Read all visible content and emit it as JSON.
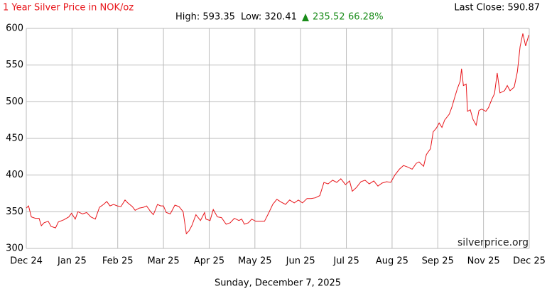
{
  "chart_data": {
    "type": "line",
    "title": "1 Year Silver Price in NOK/oz",
    "high": "High: 593.35",
    "low": "Low: 320.41",
    "change": "235.52",
    "change_pct": "66.28%",
    "last_close": "Last Close: 590.87",
    "watermark": "silverprice.org",
    "date": "Sunday, December 7, 2025",
    "xlim": [
      0,
      11
    ],
    "xticks": [
      {
        "value": 0,
        "label": "Dec 24"
      },
      {
        "value": 1,
        "label": "Jan 25"
      },
      {
        "value": 2,
        "label": "Feb 25"
      },
      {
        "value": 3,
        "label": "Mar 25"
      },
      {
        "value": 4,
        "label": "Apr 25"
      },
      {
        "value": 5,
        "label": "May 25"
      },
      {
        "value": 6,
        "label": "Jun 25"
      },
      {
        "value": 7,
        "label": "Jul 25"
      },
      {
        "value": 8,
        "label": "Aug 25"
      },
      {
        "value": 9,
        "label": "Sep 25"
      },
      {
        "value": 10,
        "label": "Nov 25"
      },
      {
        "value": 11,
        "label": "Dec 25"
      }
    ],
    "ylim": [
      300,
      600
    ],
    "yticks": [
      300,
      350,
      400,
      450,
      500,
      550,
      600
    ],
    "grid": true,
    "x": [
      0,
      0.05,
      0.11,
      0.2,
      0.28,
      0.33,
      0.39,
      0.48,
      0.54,
      0.64,
      0.7,
      0.82,
      0.93,
      0.99,
      1.07,
      1.13,
      1.23,
      1.32,
      1.41,
      1.51,
      1.6,
      1.69,
      1.76,
      1.83,
      1.91,
      1.99,
      2.07,
      2.16,
      2.22,
      2.32,
      2.38,
      2.47,
      2.56,
      2.63,
      2.72,
      2.78,
      2.87,
      2.94,
      3.0,
      3.06,
      3.15,
      3.25,
      3.34,
      3.43,
      3.5,
      3.56,
      3.62,
      3.71,
      3.81,
      3.9,
      3.93,
      4.02,
      4.09,
      4.18,
      4.27,
      4.37,
      4.46,
      4.55,
      4.65,
      4.71,
      4.77,
      4.86,
      4.93,
      5.02,
      5.11,
      5.21,
      5.3,
      5.39,
      5.48,
      5.58,
      5.67,
      5.76,
      5.86,
      5.95,
      6.04,
      6.14,
      6.23,
      6.32,
      6.42,
      6.51,
      6.6,
      6.7,
      6.79,
      6.88,
      6.98,
      7.07,
      7.13,
      7.22,
      7.32,
      7.41,
      7.5,
      7.6,
      7.69,
      7.78,
      7.88,
      7.97,
      8.06,
      8.16,
      8.25,
      8.34,
      8.44,
      8.53,
      8.59,
      8.69,
      8.75,
      8.84,
      8.9,
      8.97,
      9.03,
      9.09,
      9.15,
      9.25,
      9.31,
      9.37,
      9.43,
      9.49,
      9.52,
      9.56,
      9.62,
      9.65,
      9.71,
      9.77,
      9.84,
      9.9,
      9.96,
      10.05,
      10.11,
      10.18,
      10.24,
      10.3,
      10.36,
      10.46,
      10.52,
      10.58,
      10.67,
      10.74,
      10.8,
      10.86,
      10.92,
      10.99
    ],
    "series": [
      {
        "color": "#e8161b",
        "values": [
          355,
          358,
          343,
          341,
          341,
          331,
          335,
          337,
          330,
          328,
          336,
          339,
          343,
          348,
          340,
          350,
          347,
          349,
          343,
          340,
          356,
          360,
          364,
          358,
          360,
          358,
          357,
          366,
          362,
          357,
          352,
          355,
          356,
          358,
          350,
          346,
          360,
          358,
          358,
          349,
          347,
          359,
          357,
          350,
          320,
          324,
          331,
          346,
          338,
          349,
          340,
          338,
          353,
          343,
          342,
          333,
          335,
          341,
          338,
          340,
          333,
          335,
          340,
          337,
          337,
          337,
          348,
          360,
          367,
          363,
          360,
          366,
          362,
          366,
          362,
          368,
          368,
          369,
          372,
          390,
          388,
          393,
          390,
          395,
          387,
          392,
          378,
          383,
          391,
          393,
          388,
          392,
          385,
          389,
          391,
          390,
          400,
          408,
          413,
          411,
          408,
          416,
          418,
          412,
          428,
          436,
          459,
          464,
          471,
          465,
          475,
          483,
          493,
          506,
          518,
          528,
          545,
          522,
          524,
          487,
          489,
          476,
          468,
          488,
          490,
          487,
          492,
          503,
          511,
          539,
          512,
          515,
          522,
          515,
          520,
          541,
          575,
          593,
          576,
          591
        ]
      }
    ]
  }
}
